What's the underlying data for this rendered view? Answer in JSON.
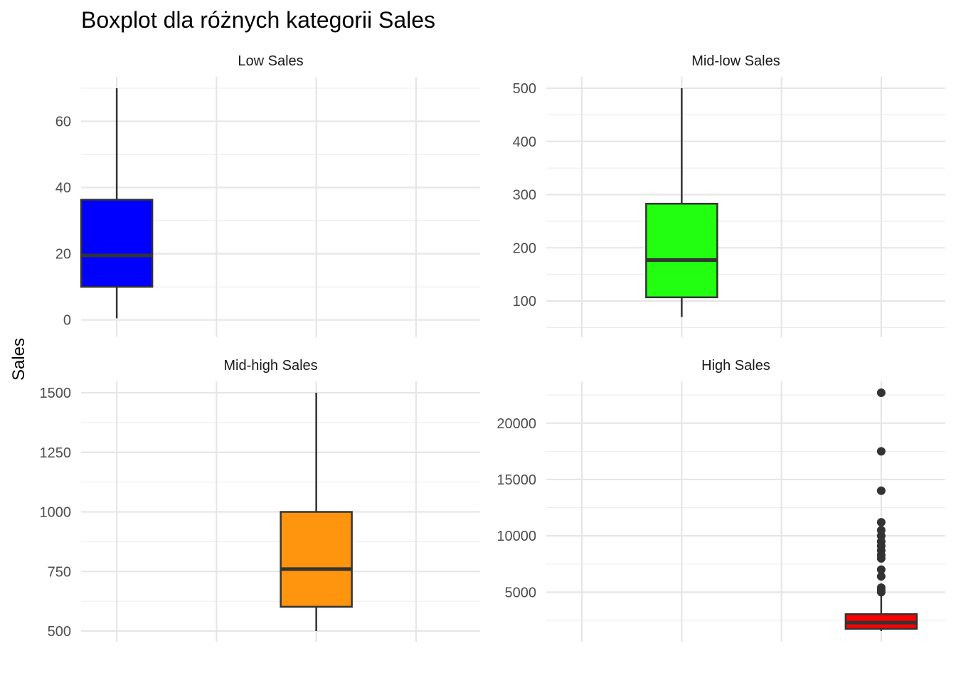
{
  "chart_data": {
    "type": "boxplot",
    "title": "Boxplot dla różnych kategorii Sales",
    "ylabel": "Sales",
    "xlabel": "",
    "grid": true,
    "x_slots": 4,
    "panels": [
      {
        "name": "Low Sales",
        "color": "#0000FF",
        "x_slot": 0,
        "ylim": [
          -2,
          70
        ],
        "yticks": [
          0,
          20,
          40,
          60
        ],
        "ytick_labels": [
          "0",
          "20",
          "40",
          "60"
        ],
        "box": {
          "min": 0.5,
          "q1": 10,
          "median": 19.5,
          "q3": 36.3,
          "max": 70
        },
        "outliers": []
      },
      {
        "name": "Mid-low Sales",
        "color": "#22FF11",
        "x_slot": 1,
        "ylim": [
          52,
          500
        ],
        "yticks": [
          100,
          200,
          300,
          400,
          500
        ],
        "ytick_labels": [
          "100",
          "200",
          "300",
          "400",
          "500"
        ],
        "box": {
          "min": 70,
          "q1": 107,
          "median": 177,
          "q3": 283,
          "max": 500
        },
        "outliers": []
      },
      {
        "name": "Mid-high Sales",
        "color": "#FF950E",
        "x_slot": 2,
        "ylim": [
          500,
          1500
        ],
        "yticks": [
          500,
          750,
          1000,
          1250,
          1500
        ],
        "ytick_labels": [
          "500",
          "750",
          "1000",
          "1250",
          "1500"
        ],
        "box": {
          "min": 500,
          "q1": 602,
          "median": 760,
          "q3": 1000,
          "max": 1500
        },
        "outliers": []
      },
      {
        "name": "High Sales",
        "color": "#FF0000",
        "x_slot": 3,
        "ylim": [
          1550,
          22700
        ],
        "yticks": [
          5000,
          10000,
          15000,
          20000
        ],
        "ytick_labels": [
          "5000",
          "10000",
          "15000",
          "20000"
        ],
        "box": {
          "min": 1550,
          "q1": 1750,
          "median": 2300,
          "q3": 3050,
          "max": 4750
        },
        "outliers": [
          5000,
          5200,
          5400,
          6400,
          7000,
          8000,
          8300,
          8700,
          9100,
          9500,
          10000,
          10500,
          11200,
          14000,
          17500,
          22700
        ]
      }
    ]
  }
}
